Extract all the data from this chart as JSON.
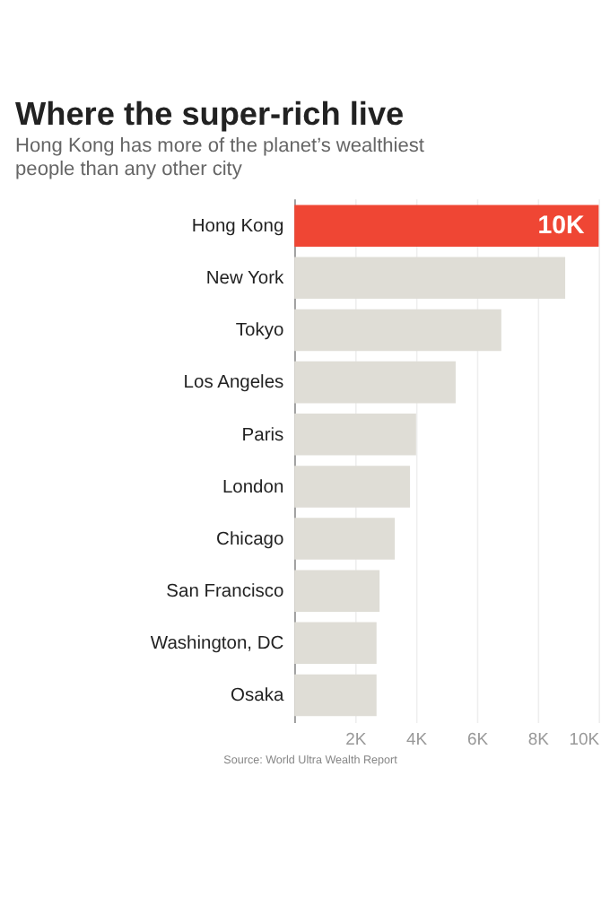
{
  "chart_data": {
    "type": "bar",
    "orientation": "horizontal",
    "title": "Where the super-rich live",
    "subtitle": "Hong Kong has more of the planet’s wealthiest people than any other city",
    "categories": [
      "Hong Kong",
      "New York",
      "Tokyo",
      "Los Angeles",
      "Paris",
      "London",
      "Chicago",
      "San Francisco",
      "Washington, DC",
      "Osaka"
    ],
    "values": [
      10000,
      8900,
      6800,
      5300,
      4000,
      3800,
      3300,
      2800,
      2700,
      2700
    ],
    "colors": [
      "#ef4634",
      "#dfddd6",
      "#dfddd6",
      "#dfddd6",
      "#dfddd6",
      "#dfddd6",
      "#dfddd6",
      "#dfddd6",
      "#dfddd6",
      "#dfddd6"
    ],
    "value_labels": [
      "10K",
      null,
      null,
      null,
      null,
      null,
      null,
      null,
      null,
      null
    ],
    "xlim": [
      0,
      10000
    ],
    "xticks": [
      {
        "value": 2000,
        "label": "2K"
      },
      {
        "value": 4000,
        "label": "4K"
      },
      {
        "value": 6000,
        "label": "6K"
      },
      {
        "value": 8000,
        "label": "8K"
      },
      {
        "value": 10000,
        "label": "10K"
      }
    ],
    "grid": "x",
    "annotations": [
      "Source: World Ultra Wealth Report"
    ]
  }
}
